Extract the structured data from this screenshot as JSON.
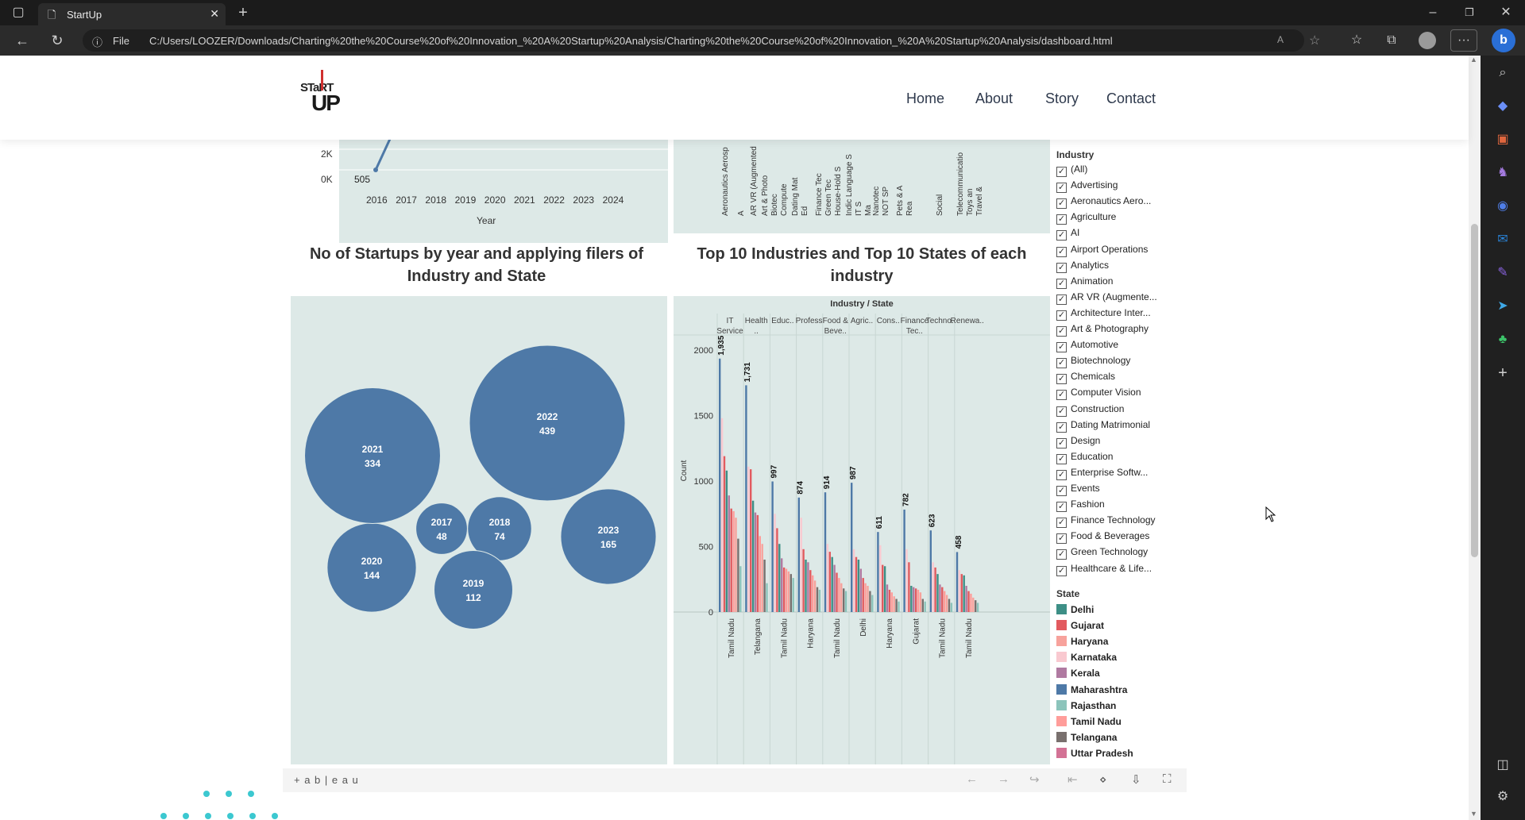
{
  "browser": {
    "tab_title": "StartUp",
    "url_prefix": "File",
    "url": "C:/Users/LOOZER/Downloads/Charting%20the%20Course%20of%20Innovation_%20A%20Startup%20Analysis/Charting%20the%20Course%20of%20Innovation_%20A%20Startup%20Analysis/dashboard.html"
  },
  "site": {
    "logo_top": "STaRT",
    "logo_bottom": "UP",
    "nav": [
      "Home",
      "About",
      "Story",
      "Contact"
    ]
  },
  "top_line_chart": {
    "y_ticks": [
      "2K",
      "0K"
    ],
    "x_ticks": [
      "2016",
      "2017",
      "2018",
      "2019",
      "2020",
      "2021",
      "2022",
      "2023",
      "2024"
    ],
    "first_label": "505",
    "xlabel": "Year"
  },
  "top_right_labels": [
    "Aeronautics Aerosp",
    "A",
    "AR VR (Augmented",
    "Art & Photo",
    "Biotec",
    "Compute",
    "Dating Mat",
    "Ed",
    "Finance Tec",
    "Green Tec",
    "House-Hold S",
    "Indic Language S",
    "IT S",
    "Ma",
    "Nanotec",
    "NOT SP",
    "Pets & A",
    "Rea",
    "Social",
    "Telecommunicatio",
    "Toys an",
    "Travel &"
  ],
  "bubble_title": "No of Startups by year and applying filers of Industry and State",
  "bars_title": "Top 10 Industries and Top 10 States of each industry",
  "chart_data": [
    {
      "type": "bubble",
      "title": "No of Startups by year and applying filers of Industry and State",
      "categories": [
        "2016",
        "2017",
        "2018",
        "2019",
        "2020",
        "2021",
        "2022",
        "2023"
      ],
      "values": [
        null,
        48,
        74,
        112,
        144,
        334,
        439,
        165
      ]
    },
    {
      "type": "bar",
      "title": "Top 10 Industries and Top 10 States of each industry",
      "header": "Industry / State",
      "ylabel": "Count",
      "ylim": [
        0,
        2200
      ],
      "yticks": [
        0,
        500,
        1000,
        1500,
        2000
      ],
      "groups": [
        {
          "industry": "IT Service",
          "top_state": "Tamil Nadu",
          "top_label": "1,935",
          "values": [
            1935,
            1480,
            1190,
            1080,
            890,
            790,
            770,
            720,
            560,
            350
          ]
        },
        {
          "industry": "Health ..",
          "top_state": "Telangana",
          "top_label": "1,731",
          "values": [
            1731,
            1110,
            1090,
            850,
            760,
            740,
            580,
            520,
            400,
            220
          ]
        },
        {
          "industry": "Educ..",
          "top_state": "Tamil Nadu",
          "top_label": "997",
          "values": [
            997,
            750,
            640,
            520,
            410,
            340,
            330,
            310,
            290,
            260
          ]
        },
        {
          "industry": "Profess..",
          "top_state": "Haryana",
          "top_label": "874",
          "values": [
            874,
            720,
            480,
            400,
            380,
            320,
            280,
            240,
            190,
            170
          ]
        },
        {
          "industry": "Food & Beve..",
          "top_state": "Tamil Nadu",
          "top_label": "914",
          "values": [
            914,
            520,
            460,
            420,
            360,
            300,
            260,
            220,
            180,
            160
          ]
        },
        {
          "industry": "Agric..",
          "top_state": "Delhi",
          "top_label": "987",
          "values": [
            987,
            480,
            420,
            400,
            330,
            260,
            220,
            200,
            160,
            130
          ]
        },
        {
          "industry": "Cons..",
          "top_state": "Haryana",
          "top_label": "611",
          "values": [
            611,
            510,
            360,
            350,
            210,
            170,
            150,
            120,
            100,
            80
          ]
        },
        {
          "industry": "Finance Tec..",
          "top_state": "Gujarat",
          "top_label": "782",
          "values": [
            782,
            480,
            380,
            200,
            190,
            180,
            170,
            150,
            100,
            80
          ]
        },
        {
          "industry": "Techno..",
          "top_state": "Tamil Nadu",
          "top_label": "623",
          "values": [
            623,
            380,
            340,
            290,
            210,
            190,
            160,
            130,
            100,
            70
          ]
        },
        {
          "industry": "Renewa..",
          "top_state": "Tamil Nadu",
          "top_label": "458",
          "values": [
            458,
            320,
            290,
            280,
            200,
            160,
            140,
            110,
            90,
            70
          ]
        }
      ]
    }
  ],
  "filters": {
    "industry_title": "Industry",
    "industries": [
      "(All)",
      "Advertising",
      "Aeronautics Aero...",
      "Agriculture",
      "AI",
      "Airport Operations",
      "Analytics",
      "Animation",
      "AR VR (Augmente...",
      "Architecture Inter...",
      "Art & Photography",
      "Automotive",
      "Biotechnology",
      "Chemicals",
      "Computer Vision",
      "Construction",
      "Dating Matrimonial",
      "Design",
      "Education",
      "Enterprise Softw...",
      "Events",
      "Fashion",
      "Finance Technology",
      "Food & Beverages",
      "Green Technology",
      "Healthcare & Life..."
    ],
    "state_title": "State",
    "states": [
      {
        "name": "Delhi",
        "color": "#3d8f86"
      },
      {
        "name": "Gujarat",
        "color": "#e25a5f"
      },
      {
        "name": "Haryana",
        "color": "#f7a29c"
      },
      {
        "name": "Karnataka",
        "color": "#f9c9d0"
      },
      {
        "name": "Kerala",
        "color": "#b07aa1"
      },
      {
        "name": "Maharashtra",
        "color": "#4e79a7"
      },
      {
        "name": "Rajasthan",
        "color": "#8cc4bb"
      },
      {
        "name": "Tamil Nadu",
        "color": "#ff9d9a"
      },
      {
        "name": "Telangana",
        "color": "#79706e"
      },
      {
        "name": "Uttar Pradesh",
        "color": "#d37295"
      }
    ]
  },
  "tableau": {
    "brand": "+ a b | e a u"
  },
  "colors": {
    "panel": "#dde9e7",
    "bubble": "#4e79a7",
    "line": "#4e79a7"
  }
}
